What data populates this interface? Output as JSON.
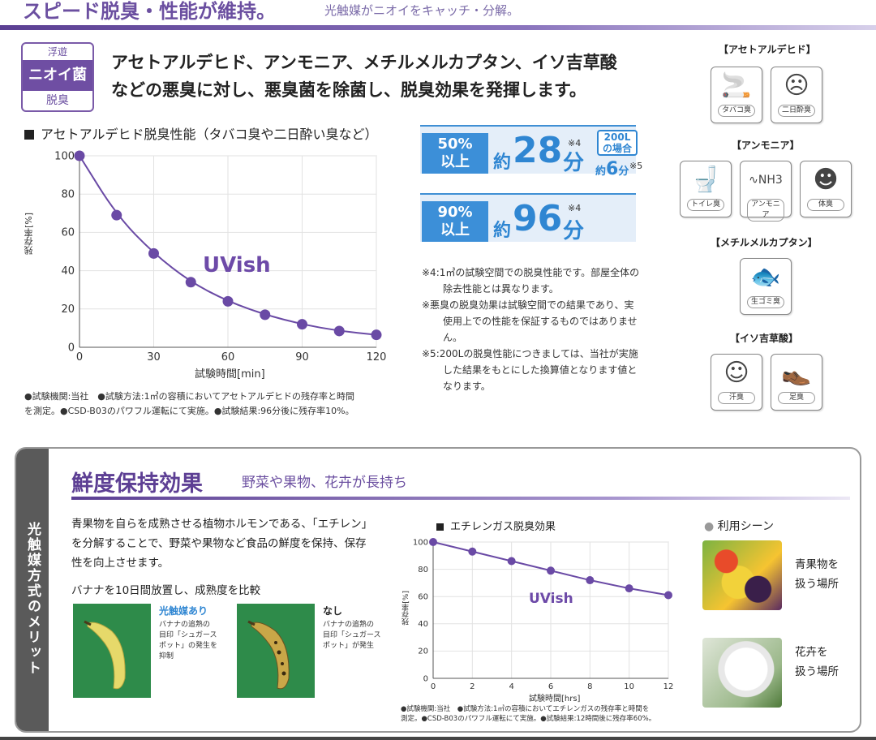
{
  "header": {
    "title": "スピード脱臭・性能が維持。",
    "subtitle": "光触媒がニオイをキャッチ・分解。"
  },
  "badge": {
    "top": "浮遊",
    "middle": "ニオイ菌",
    "bottom": "脱臭"
  },
  "lead": {
    "line1": "アセトアルデヒド、アンモニア、メチルメルカプタン、イソ吉草酸",
    "line2": "などの悪臭に対し、悪臭菌を除菌し、脱臭効果を発揮します。"
  },
  "chart1": {
    "heading": "アセトアルデヒド脱臭性能（タバコ臭や二日酔い臭など）",
    "watermark": "UVish",
    "footnote1": "●試験機関:当社　●試験方法:1㎥の容積においてアセトアルデヒドの残存率と時間",
    "footnote2": "を測定。●CSD-B03のパワフル運転にて実施。●試験結果:96分後に残存率10%。"
  },
  "performance": {
    "row1": {
      "pct": "50%",
      "suffix": "以上",
      "yaku": "約",
      "value": "28",
      "unit": "分",
      "note": "※4",
      "box200_line1": "200L",
      "box200_line2": "の場合",
      "small_yaku": "約",
      "small_value": "6",
      "small_unit": "分",
      "small_note": "※5"
    },
    "row2": {
      "pct": "90%",
      "suffix": "以上",
      "yaku": "約",
      "value": "96",
      "unit": "分",
      "note": "※4"
    }
  },
  "notes": [
    "※4:1㎥の試験空間での脱臭性能です。部屋全体の除去性能とは異なります。",
    "※悪臭の脱臭効果は試験空間での結果であり、実使用上での性能を保証するものではありません。",
    "※5:200Lの脱臭性能につきましては、当社が実施した結果をもとにした換算値となります値となります。"
  ],
  "odor_categories": {
    "acetaldehyde": {
      "title": "【アセトアルデヒド】",
      "items": [
        {
          "label": "タバコ臭",
          "icon": "cigarette-icon"
        },
        {
          "label": "二日酔臭",
          "icon": "hangover-icon"
        }
      ]
    },
    "ammonia": {
      "title": "【アンモニア】",
      "items": [
        {
          "label": "トイレ臭",
          "icon": "toilet-icon"
        },
        {
          "label": "アンモニア",
          "icon": "nh3-icon",
          "sub": "NH3"
        },
        {
          "label": "体臭",
          "icon": "body-odor-icon"
        }
      ]
    },
    "methyl_mercaptan": {
      "title": "【メチルメルカプタン】",
      "items": [
        {
          "label": "生ゴミ臭",
          "icon": "fish-bone-icon"
        }
      ]
    },
    "isovaleric": {
      "title": "【イソ吉草酸】",
      "items": [
        {
          "label": "汗臭",
          "icon": "sweat-icon"
        },
        {
          "label": "足臭",
          "icon": "shoe-icon"
        }
      ]
    }
  },
  "freshness": {
    "side_label": "光触媒方式のメリット",
    "title": "鮮度保持効果",
    "subtitle": "野菜や果物、花卉が長持ち",
    "body_line1": "青果物を自らを成熟させる植物ホルモンである、「エチレン」",
    "body_line2": "を分解することで、野菜や果物など食品の鮮度を保持、保存",
    "body_line3": "性を向上させます。",
    "compare": "バナナを10日間放置し、成熟度を比較",
    "with_label": "光触媒あり",
    "with_desc1": "バナナの追熟の",
    "with_desc2": "目印「シュガース",
    "with_desc3": "ポット」の発生を",
    "with_desc4": "抑制",
    "without_label": "なし",
    "without_desc1": "バナナの追熟の",
    "without_desc2": "目印「シュガース",
    "without_desc3": "ポット」が発生"
  },
  "chart2": {
    "heading": "エチレンガス脱臭効果",
    "watermark": "UVish",
    "footnote1": "●試験機関:当社　●試験方法:1㎥の容積においてエチレンガスの残存率と時間を",
    "footnote2": "測定。●CSD-B03のパワフル運転にて実施。●試験結果:12時間後に残存率60%。"
  },
  "scenes": {
    "heading": "利用シーン",
    "scene1_line1": "青果物を",
    "scene1_line2": "扱う場所",
    "scene2_line1": "花卉を",
    "scene2_line2": "扱う場所"
  },
  "chart_data": [
    {
      "type": "line",
      "title": "アセトアルデヒド脱臭性能（タバコ臭や二日酔い臭など）",
      "xlabel": "試験時間[min]",
      "ylabel": "残存率[%]",
      "x": [
        0,
        15,
        30,
        45,
        60,
        75,
        90,
        105,
        120
      ],
      "y": [
        100,
        69,
        49,
        34,
        24,
        17,
        12,
        8.5,
        6.5
      ],
      "xlim": [
        0,
        120
      ],
      "ylim": [
        0,
        100
      ],
      "xticks": [
        0,
        30,
        60,
        90,
        120
      ],
      "yticks": [
        0,
        20,
        40,
        60,
        80,
        100
      ],
      "color": "#6a4aa5",
      "grid": true
    },
    {
      "type": "line",
      "title": "エチレンガス脱臭効果",
      "xlabel": "試験時間[hrs]",
      "ylabel": "残存率[%]",
      "x": [
        0,
        2,
        4,
        6,
        8,
        10,
        12
      ],
      "y": [
        100,
        93,
        86,
        79,
        72,
        66,
        61
      ],
      "xlim": [
        0,
        12
      ],
      "ylim": [
        0,
        100
      ],
      "xticks": [
        0,
        2,
        4,
        6,
        8,
        10,
        12
      ],
      "yticks": [
        0,
        20,
        40,
        60,
        80,
        100
      ],
      "color": "#6a4aa5",
      "grid": true
    }
  ]
}
